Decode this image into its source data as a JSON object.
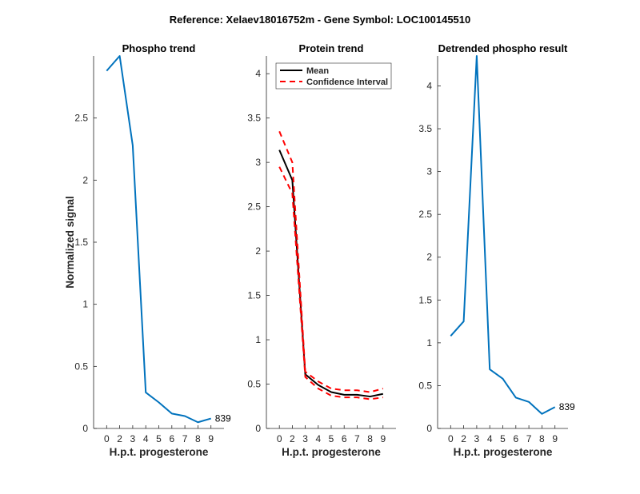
{
  "suptitle": "Reference:  Xelaev18016752m - Gene Symbol:  LOC100145510",
  "colors": {
    "line": "#0072BD",
    "mean": "#000000",
    "ci": "#FF0000",
    "axis": "#262626"
  },
  "chart_data": [
    {
      "type": "line",
      "title": "Phospho trend",
      "xlabel": "H.p.t. progesterone",
      "ylabel": "Normalized signal",
      "categories": [
        "0",
        "2",
        "3",
        "4",
        "5",
        "6",
        "7",
        "8",
        "9"
      ],
      "ylim": [
        0,
        3.0
      ],
      "yticks": [
        0,
        0.5,
        1,
        1.5,
        2,
        2.5
      ],
      "series": [
        {
          "name": "phospho",
          "values": [
            2.88,
            3.0,
            2.28,
            0.29,
            0.21,
            0.12,
            0.1,
            0.05,
            0.08
          ]
        }
      ],
      "annotation": "839"
    },
    {
      "type": "line",
      "title": "Protein trend",
      "xlabel": "H.p.t. progesterone",
      "ylabel": "",
      "categories": [
        "0",
        "2",
        "3",
        "4",
        "5",
        "6",
        "7",
        "8",
        "9"
      ],
      "ylim": [
        0,
        4.2
      ],
      "yticks": [
        0,
        0.5,
        1,
        1.5,
        2,
        2.5,
        3,
        3.5,
        4
      ],
      "legend": {
        "placement": "top-left",
        "entries": [
          "Mean",
          "Confidence Interval"
        ]
      },
      "series": [
        {
          "name": "Mean",
          "values": [
            3.14,
            2.8,
            0.61,
            0.49,
            0.41,
            0.38,
            0.38,
            0.36,
            0.39
          ]
        },
        {
          "name": "CI upper",
          "values": [
            3.35,
            3.0,
            0.64,
            0.53,
            0.45,
            0.43,
            0.43,
            0.41,
            0.45
          ]
        },
        {
          "name": "CI lower",
          "values": [
            2.95,
            2.65,
            0.58,
            0.45,
            0.37,
            0.35,
            0.35,
            0.33,
            0.35
          ]
        }
      ]
    },
    {
      "type": "line",
      "title": "Detrended phospho result",
      "xlabel": "H.p.t. progesterone",
      "ylabel": "",
      "categories": [
        "0",
        "2",
        "3",
        "4",
        "5",
        "6",
        "7",
        "8",
        "9"
      ],
      "ylim": [
        0,
        4.35
      ],
      "yticks": [
        0,
        0.5,
        1,
        1.5,
        2,
        2.5,
        3,
        3.5,
        4
      ],
      "series": [
        {
          "name": "detrended",
          "values": [
            1.08,
            1.25,
            4.35,
            0.69,
            0.58,
            0.36,
            0.31,
            0.17,
            0.25
          ]
        }
      ],
      "annotation": "839"
    }
  ]
}
